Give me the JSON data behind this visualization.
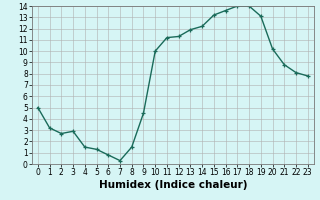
{
  "title": "",
  "xlabel": "Humidex (Indice chaleur)",
  "x": [
    0,
    1,
    2,
    3,
    4,
    5,
    6,
    7,
    8,
    9,
    10,
    11,
    12,
    13,
    14,
    15,
    16,
    17,
    18,
    19,
    20,
    21,
    22,
    23
  ],
  "y": [
    5.0,
    3.2,
    2.7,
    2.9,
    1.5,
    1.3,
    0.8,
    0.3,
    1.5,
    4.5,
    10.0,
    11.2,
    11.3,
    11.9,
    12.2,
    13.2,
    13.6,
    14.0,
    14.0,
    13.1,
    10.2,
    8.8,
    8.1,
    7.8
  ],
  "line_color": "#1a6b5a",
  "marker": "+",
  "bg_color": "#d6f5f5",
  "grid_color": "#b0b0b0",
  "ylim": [
    0,
    14
  ],
  "xlim": [
    -0.5,
    23.5
  ],
  "yticks": [
    0,
    1,
    2,
    3,
    4,
    5,
    6,
    7,
    8,
    9,
    10,
    11,
    12,
    13,
    14
  ],
  "xticks": [
    0,
    1,
    2,
    3,
    4,
    5,
    6,
    7,
    8,
    9,
    10,
    11,
    12,
    13,
    14,
    15,
    16,
    17,
    18,
    19,
    20,
    21,
    22,
    23
  ],
  "tick_label_fontsize": 5.5,
  "xlabel_fontsize": 7.5,
  "xlabel_fontweight": "bold"
}
